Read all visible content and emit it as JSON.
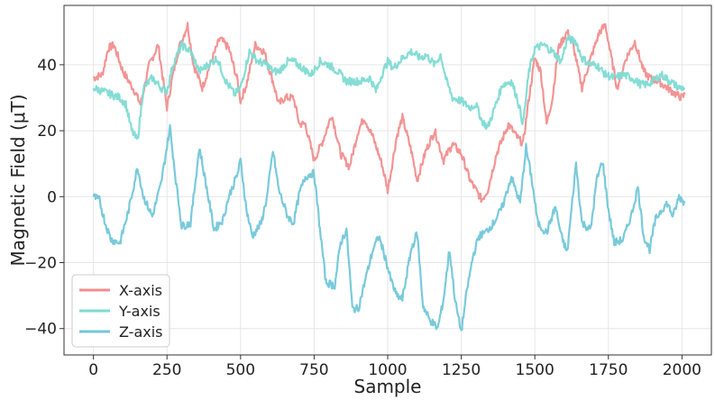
{
  "chart_data": {
    "type": "line",
    "xlabel": "Sample",
    "ylabel": "Magnetic Field (μT)",
    "xlim": [
      -100,
      2100
    ],
    "ylim": [
      -48,
      58
    ],
    "grid": true,
    "legend_position": "bottom-left",
    "x_ticks": [
      0,
      250,
      500,
      750,
      1000,
      1250,
      1500,
      1750,
      2000
    ],
    "x_tick_labels": [
      "0",
      "250",
      "500",
      "750",
      "1000",
      "1250",
      "1500",
      "1750",
      "2000"
    ],
    "y_ticks": [
      -40,
      -20,
      0,
      20,
      40
    ],
    "y_tick_labels": [
      "−40",
      "−20",
      "0",
      "20",
      "40"
    ],
    "series": [
      {
        "name": "X-axis",
        "color": "#f28e8e",
        "points": [
          [
            0,
            36
          ],
          [
            30,
            37
          ],
          [
            50,
            45
          ],
          [
            70,
            46
          ],
          [
            100,
            38
          ],
          [
            140,
            32
          ],
          [
            160,
            28
          ],
          [
            190,
            40
          ],
          [
            220,
            46
          ],
          [
            250,
            27
          ],
          [
            270,
            37
          ],
          [
            290,
            45
          ],
          [
            320,
            52
          ],
          [
            340,
            40
          ],
          [
            370,
            33
          ],
          [
            400,
            41
          ],
          [
            430,
            48
          ],
          [
            460,
            45
          ],
          [
            490,
            35
          ],
          [
            500,
            29
          ],
          [
            520,
            34
          ],
          [
            550,
            46
          ],
          [
            580,
            44
          ],
          [
            610,
            35
          ],
          [
            630,
            28
          ],
          [
            650,
            30
          ],
          [
            680,
            30
          ],
          [
            700,
            22
          ],
          [
            720,
            22
          ],
          [
            750,
            11
          ],
          [
            780,
            17
          ],
          [
            810,
            25
          ],
          [
            840,
            13
          ],
          [
            870,
            9
          ],
          [
            900,
            20
          ],
          [
            920,
            24
          ],
          [
            950,
            18
          ],
          [
            980,
            10
          ],
          [
            1000,
            2
          ],
          [
            1010,
            7
          ],
          [
            1030,
            18
          ],
          [
            1050,
            24
          ],
          [
            1080,
            14
          ],
          [
            1100,
            5
          ],
          [
            1130,
            14
          ],
          [
            1160,
            20
          ],
          [
            1190,
            11
          ],
          [
            1220,
            16
          ],
          [
            1250,
            13
          ],
          [
            1280,
            5
          ],
          [
            1300,
            2
          ],
          [
            1320,
            -1
          ],
          [
            1340,
            2
          ],
          [
            1370,
            13
          ],
          [
            1410,
            22
          ],
          [
            1440,
            18
          ],
          [
            1460,
            16
          ],
          [
            1480,
            30
          ],
          [
            1500,
            42
          ],
          [
            1520,
            38
          ],
          [
            1540,
            22
          ],
          [
            1560,
            30
          ],
          [
            1580,
            45
          ],
          [
            1610,
            50
          ],
          [
            1630,
            46
          ],
          [
            1660,
            33
          ],
          [
            1690,
            42
          ],
          [
            1720,
            50
          ],
          [
            1740,
            52
          ],
          [
            1760,
            42
          ],
          [
            1780,
            33
          ],
          [
            1810,
            42
          ],
          [
            1840,
            47
          ],
          [
            1870,
            38
          ],
          [
            1890,
            36
          ],
          [
            1920,
            35
          ],
          [
            1950,
            33
          ],
          [
            1980,
            31
          ],
          [
            2000,
            30
          ],
          [
            2010,
            31
          ]
        ]
      },
      {
        "name": "Y-axis",
        "color": "#7edbd3",
        "points": [
          [
            0,
            33
          ],
          [
            30,
            32
          ],
          [
            60,
            31
          ],
          [
            90,
            30
          ],
          [
            110,
            28
          ],
          [
            130,
            20
          ],
          [
            150,
            17
          ],
          [
            170,
            33
          ],
          [
            200,
            36
          ],
          [
            230,
            33
          ],
          [
            250,
            32
          ],
          [
            270,
            40
          ],
          [
            300,
            46
          ],
          [
            330,
            44
          ],
          [
            360,
            38
          ],
          [
            390,
            40
          ],
          [
            420,
            42
          ],
          [
            450,
            35
          ],
          [
            480,
            31
          ],
          [
            500,
            33
          ],
          [
            530,
            44
          ],
          [
            560,
            41
          ],
          [
            590,
            40
          ],
          [
            610,
            38
          ],
          [
            630,
            38
          ],
          [
            660,
            41
          ],
          [
            680,
            41
          ],
          [
            710,
            39
          ],
          [
            740,
            37
          ],
          [
            770,
            41
          ],
          [
            800,
            40
          ],
          [
            830,
            38
          ],
          [
            860,
            35
          ],
          [
            880,
            35
          ],
          [
            910,
            35
          ],
          [
            940,
            36
          ],
          [
            960,
            32
          ],
          [
            980,
            37
          ],
          [
            1000,
            41
          ],
          [
            1020,
            39
          ],
          [
            1050,
            42
          ],
          [
            1080,
            44
          ],
          [
            1110,
            42
          ],
          [
            1130,
            43
          ],
          [
            1160,
            40
          ],
          [
            1180,
            43
          ],
          [
            1200,
            35
          ],
          [
            1220,
            30
          ],
          [
            1250,
            29
          ],
          [
            1280,
            27
          ],
          [
            1300,
            28
          ],
          [
            1320,
            23
          ],
          [
            1340,
            21
          ],
          [
            1360,
            26
          ],
          [
            1390,
            34
          ],
          [
            1420,
            35
          ],
          [
            1440,
            30
          ],
          [
            1460,
            22
          ],
          [
            1480,
            38
          ],
          [
            1500,
            45
          ],
          [
            1530,
            46
          ],
          [
            1560,
            44
          ],
          [
            1590,
            41
          ],
          [
            1610,
            48
          ],
          [
            1640,
            47
          ],
          [
            1660,
            42
          ],
          [
            1690,
            40
          ],
          [
            1710,
            40
          ],
          [
            1740,
            37
          ],
          [
            1770,
            36
          ],
          [
            1800,
            37
          ],
          [
            1830,
            36
          ],
          [
            1860,
            34
          ],
          [
            1880,
            34
          ],
          [
            1900,
            35
          ],
          [
            1930,
            37
          ],
          [
            1960,
            35
          ],
          [
            1990,
            33
          ],
          [
            2010,
            33
          ]
        ]
      },
      {
        "name": "Z-axis",
        "color": "#72c7d9",
        "points": [
          [
            0,
            0
          ],
          [
            20,
            -1
          ],
          [
            40,
            -8
          ],
          [
            60,
            -13
          ],
          [
            90,
            -14
          ],
          [
            120,
            -4
          ],
          [
            150,
            9
          ],
          [
            170,
            0
          ],
          [
            200,
            -6
          ],
          [
            230,
            4
          ],
          [
            260,
            21
          ],
          [
            280,
            5
          ],
          [
            300,
            -9
          ],
          [
            330,
            -8
          ],
          [
            360,
            15
          ],
          [
            390,
            0
          ],
          [
            410,
            -10
          ],
          [
            440,
            -7
          ],
          [
            460,
            0
          ],
          [
            490,
            7
          ],
          [
            500,
            11
          ],
          [
            520,
            -4
          ],
          [
            540,
            -12
          ],
          [
            570,
            -8
          ],
          [
            590,
            0
          ],
          [
            610,
            14
          ],
          [
            630,
            2
          ],
          [
            660,
            -6
          ],
          [
            680,
            -8
          ],
          [
            700,
            1
          ],
          [
            720,
            6
          ],
          [
            740,
            7
          ],
          [
            750,
            7
          ],
          [
            770,
            -10
          ],
          [
            790,
            -26
          ],
          [
            820,
            -27
          ],
          [
            840,
            -14
          ],
          [
            860,
            -10
          ],
          [
            880,
            -34
          ],
          [
            900,
            -34
          ],
          [
            930,
            -23
          ],
          [
            950,
            -16
          ],
          [
            970,
            -12
          ],
          [
            990,
            -18
          ],
          [
            1010,
            -25
          ],
          [
            1030,
            -30
          ],
          [
            1050,
            -31
          ],
          [
            1080,
            -16
          ],
          [
            1100,
            -11
          ],
          [
            1120,
            -33
          ],
          [
            1140,
            -37
          ],
          [
            1160,
            -39
          ],
          [
            1170,
            -40
          ],
          [
            1190,
            -31
          ],
          [
            1210,
            -16
          ],
          [
            1230,
            -32
          ],
          [
            1250,
            -41
          ],
          [
            1270,
            -28
          ],
          [
            1290,
            -18
          ],
          [
            1310,
            -12
          ],
          [
            1330,
            -11
          ],
          [
            1360,
            -8
          ],
          [
            1390,
            -3
          ],
          [
            1420,
            6
          ],
          [
            1450,
            -2
          ],
          [
            1470,
            15
          ],
          [
            1490,
            5
          ],
          [
            1510,
            -8
          ],
          [
            1540,
            -11
          ],
          [
            1570,
            -3
          ],
          [
            1590,
            -12
          ],
          [
            1610,
            -17
          ],
          [
            1640,
            10
          ],
          [
            1660,
            -8
          ],
          [
            1690,
            -10
          ],
          [
            1710,
            5
          ],
          [
            1730,
            11
          ],
          [
            1750,
            -4
          ],
          [
            1770,
            -14
          ],
          [
            1800,
            -13
          ],
          [
            1830,
            -5
          ],
          [
            1850,
            3
          ],
          [
            1870,
            -12
          ],
          [
            1890,
            -16
          ],
          [
            1910,
            -7
          ],
          [
            1930,
            -4
          ],
          [
            1950,
            -2
          ],
          [
            1970,
            -6
          ],
          [
            1990,
            0
          ],
          [
            2010,
            -2
          ]
        ]
      }
    ]
  }
}
